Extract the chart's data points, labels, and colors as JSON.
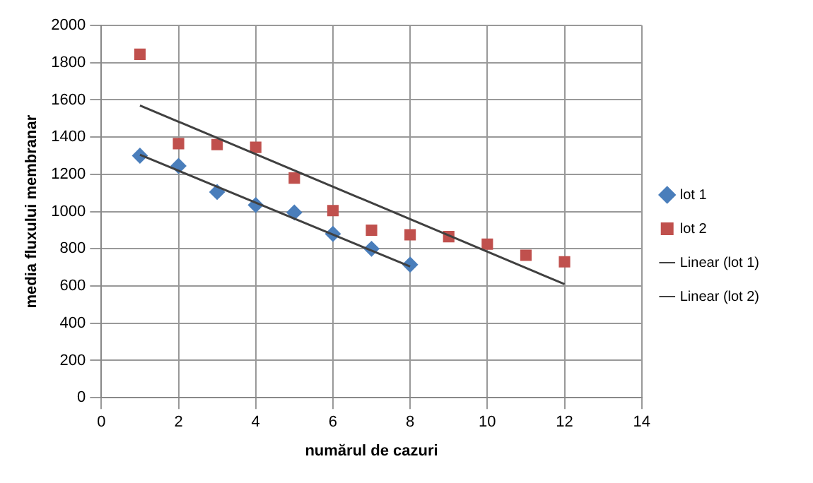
{
  "chart_data": {
    "type": "scatter",
    "xlabel": "numărul de cazuri",
    "ylabel": "media fluxului membranar",
    "xlim": [
      0,
      14
    ],
    "xticks": [
      0,
      2,
      4,
      6,
      8,
      10,
      12,
      14
    ],
    "ylim": [
      0,
      2000
    ],
    "yticks": [
      0,
      200,
      400,
      600,
      800,
      1000,
      1200,
      1400,
      1600,
      1800,
      2000
    ],
    "grid": true,
    "legend": "right",
    "series": [
      {
        "name": "lot 1",
        "type": "scatter",
        "marker": "diamond",
        "color": "#4a7ebb",
        "x": [
          1,
          2,
          3,
          4,
          5,
          6,
          7,
          8
        ],
        "values": [
          1300,
          1245,
          1105,
          1035,
          995,
          880,
          800,
          715
        ]
      },
      {
        "name": "lot 2",
        "type": "scatter",
        "marker": "square",
        "color": "#c0504d",
        "x": [
          1,
          2,
          3,
          4,
          5,
          6,
          7,
          8,
          9,
          10,
          11,
          12
        ],
        "values": [
          1845,
          1365,
          1360,
          1345,
          1180,
          1005,
          900,
          875,
          865,
          825,
          765,
          730
        ]
      },
      {
        "name": "Linear (lot 1)",
        "type": "line",
        "marker": "none",
        "color": "#404040",
        "x": [
          1,
          8
        ],
        "values": [
          1305,
          705
        ]
      },
      {
        "name": "Linear (lot 2)",
        "type": "line",
        "marker": "none",
        "color": "#404040",
        "x": [
          1,
          12
        ],
        "values": [
          1570,
          610
        ]
      }
    ]
  }
}
